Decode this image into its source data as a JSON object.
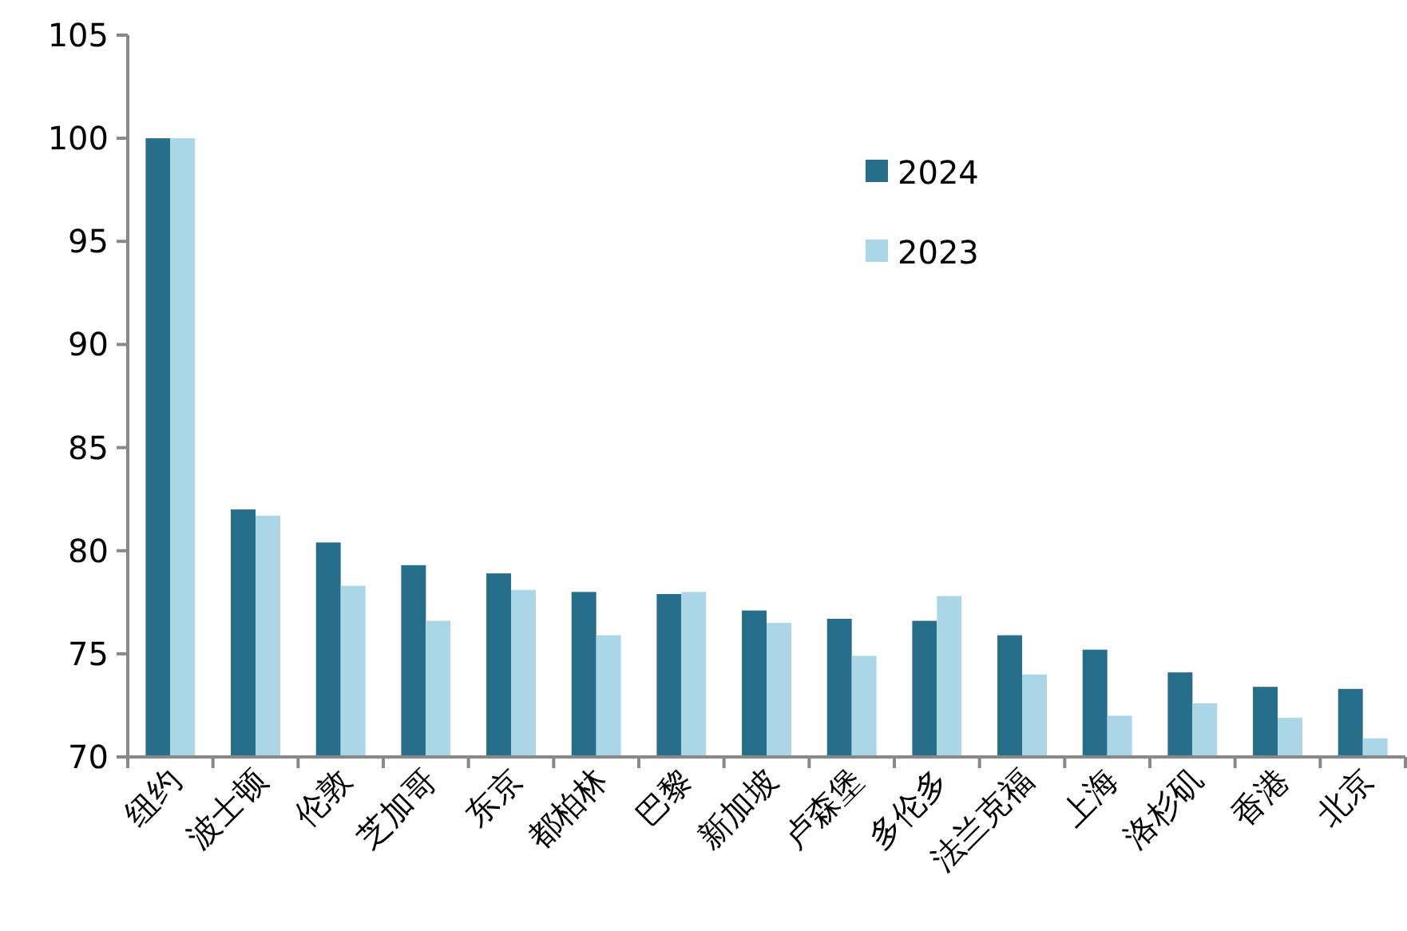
{
  "chart_data": {
    "type": "bar",
    "categories": [
      "纽约",
      "波士顿",
      "伦敦",
      "芝加哥",
      "东京",
      "都柏林",
      "巴黎",
      "新加坡",
      "卢森堡",
      "多伦多",
      "法兰克福",
      "上海",
      "洛杉矶",
      "香港",
      "北京"
    ],
    "series": [
      {
        "name": "2024",
        "color": "#266e8a",
        "values": [
          100,
          82.0,
          80.4,
          79.3,
          78.9,
          78.0,
          77.9,
          77.1,
          76.7,
          76.6,
          75.9,
          75.2,
          74.1,
          73.4,
          73.3
        ]
      },
      {
        "name": "2023",
        "color": "#abd6e8",
        "values": [
          100,
          81.7,
          78.3,
          76.6,
          78.1,
          75.9,
          78.0,
          76.5,
          74.9,
          77.8,
          74.0,
          72.0,
          72.6,
          71.9,
          70.9
        ]
      }
    ],
    "ylim": [
      70,
      105
    ],
    "yticks": [
      70,
      75,
      80,
      85,
      90,
      95,
      100,
      105
    ],
    "grid": false,
    "legend": "top right"
  }
}
